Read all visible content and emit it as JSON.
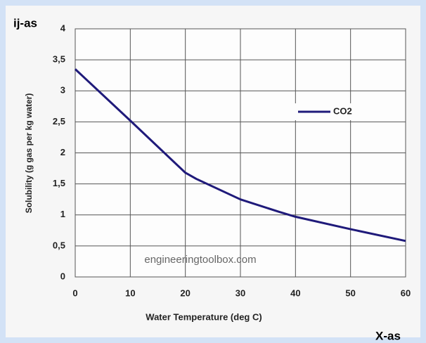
{
  "chart_data": {
    "type": "line",
    "y_label": "Solubility (g gas per kg water)",
    "x_label": "Water Temperature (deg C)",
    "annotations": [
      "ij-as",
      "X-as",
      "engineeringtoolbox.com"
    ],
    "x": [
      0,
      10,
      20,
      22,
      30,
      37,
      40,
      50,
      60
    ],
    "series": [
      {
        "name": "CO2",
        "color": "#1f1a7a",
        "values": [
          3.35,
          2.52,
          1.68,
          1.58,
          1.25,
          1.05,
          0.97,
          0.77,
          0.58
        ]
      }
    ],
    "xlim": [
      0,
      60
    ],
    "xticks": [
      0,
      10,
      20,
      30,
      40,
      50,
      60
    ],
    "ylim": [
      0,
      4
    ],
    "yticks": [
      0,
      {
        "value": 0.5,
        "label": "0,5"
      },
      1,
      {
        "value": 1.5,
        "label": "1,5"
      },
      2,
      {
        "value": 2.5,
        "label": "2,5"
      },
      3,
      {
        "value": 3.5,
        "label": "3,5"
      },
      4
    ],
    "grid": true,
    "legend": "upper right"
  }
}
